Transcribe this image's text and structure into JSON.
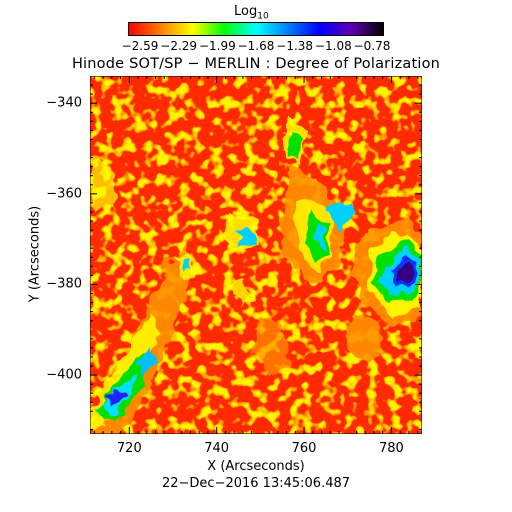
{
  "colorbar": {
    "label_main": "Log",
    "label_sub": "10",
    "ticks": [
      "−2.59",
      "−2.29",
      "−1.99",
      "−1.68",
      "−1.38",
      "−1.08",
      "−0.78"
    ],
    "range": [
      -2.59,
      -0.78
    ],
    "colormap_stops": [
      "#ff0000",
      "#ff8000",
      "#ffff00",
      "#00ff00",
      "#00ffff",
      "#0080ff",
      "#0000ff",
      "#6000b0",
      "#000000"
    ]
  },
  "title": "Hinode SOT/SP − MERLIN : Degree of Polarization",
  "axes": {
    "xlabel": "X (Arcseconds)",
    "ylabel": "Y (Arcseconds)",
    "xticks": [
      "720",
      "740",
      "760",
      "780"
    ],
    "xtick_values": [
      720,
      740,
      760,
      780
    ],
    "yticks": [
      "−340",
      "−360",
      "−380",
      "−400"
    ],
    "ytick_values": [
      -340,
      -360,
      -380,
      -400
    ],
    "xlim": [
      711,
      787
    ],
    "ylim": [
      -413,
      -334
    ]
  },
  "timestamp": "22−Dec−2016 13:45:06.487"
}
